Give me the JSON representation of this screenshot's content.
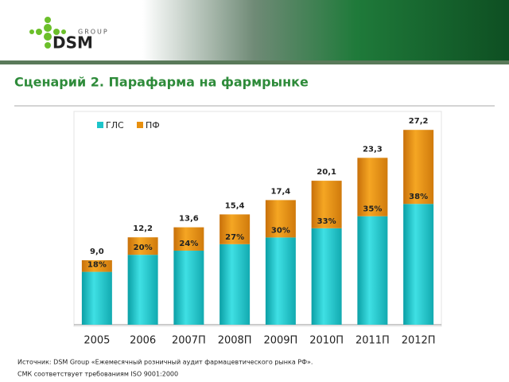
{
  "logo": {
    "group": "GROUP",
    "name": "DSM"
  },
  "chart_data": {
    "type": "stacked-bar",
    "title": "Сценарий 2. Парафарма на фармрынке",
    "categories": [
      "2005",
      "2006",
      "2007П",
      "2008П",
      "2009П",
      "2010П",
      "2011П",
      "2012П"
    ],
    "totals": [
      9.0,
      12.2,
      13.6,
      15.4,
      17.4,
      20.1,
      23.3,
      27.2
    ],
    "total_labels": [
      "9,0",
      "12,2",
      "13,6",
      "15,4",
      "17,4",
      "20,1",
      "23,3",
      "27,2"
    ],
    "series": [
      {
        "name": "ГЛС",
        "color": "#1cc4c9"
      },
      {
        "name": "ПФ",
        "color": "#e8900f",
        "values": [
          18,
          20,
          24,
          27,
          30,
          33,
          35,
          38
        ],
        "value_labels": [
          "18%",
          "20%",
          "24%",
          "27%",
          "30%",
          "33%",
          "35%",
          "38%"
        ]
      }
    ],
    "legend": "top-left"
  },
  "footer": [
    "Источник: DSM Group «Ежемесячный розничный аудит фармацевтического рынка РФ».",
    "СМК соответствует требованиям ISO 9001:2000"
  ]
}
